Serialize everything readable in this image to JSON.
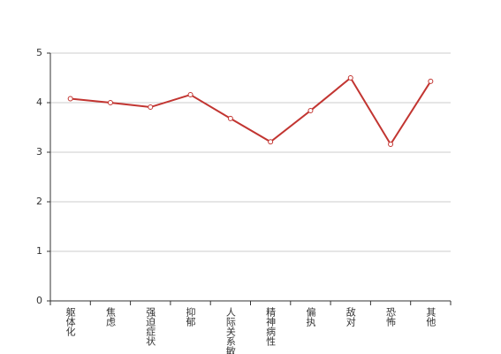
{
  "chart_data": {
    "type": "line",
    "categories": [
      "躯体化",
      "焦虑",
      "强迫症状",
      "抑郁",
      "人际关系敏感",
      "精神病性",
      "偏执",
      "敌对",
      "恐怖",
      "其他"
    ],
    "series": [
      {
        "name": null,
        "color": "#c23531",
        "values": [
          4.08,
          4.0,
          3.91,
          4.16,
          3.68,
          3.21,
          3.84,
          4.5,
          3.16,
          4.43
        ]
      }
    ],
    "ylim": [
      0,
      5
    ],
    "yticks": [
      0,
      1,
      2,
      3,
      4,
      5
    ],
    "grid": true
  }
}
